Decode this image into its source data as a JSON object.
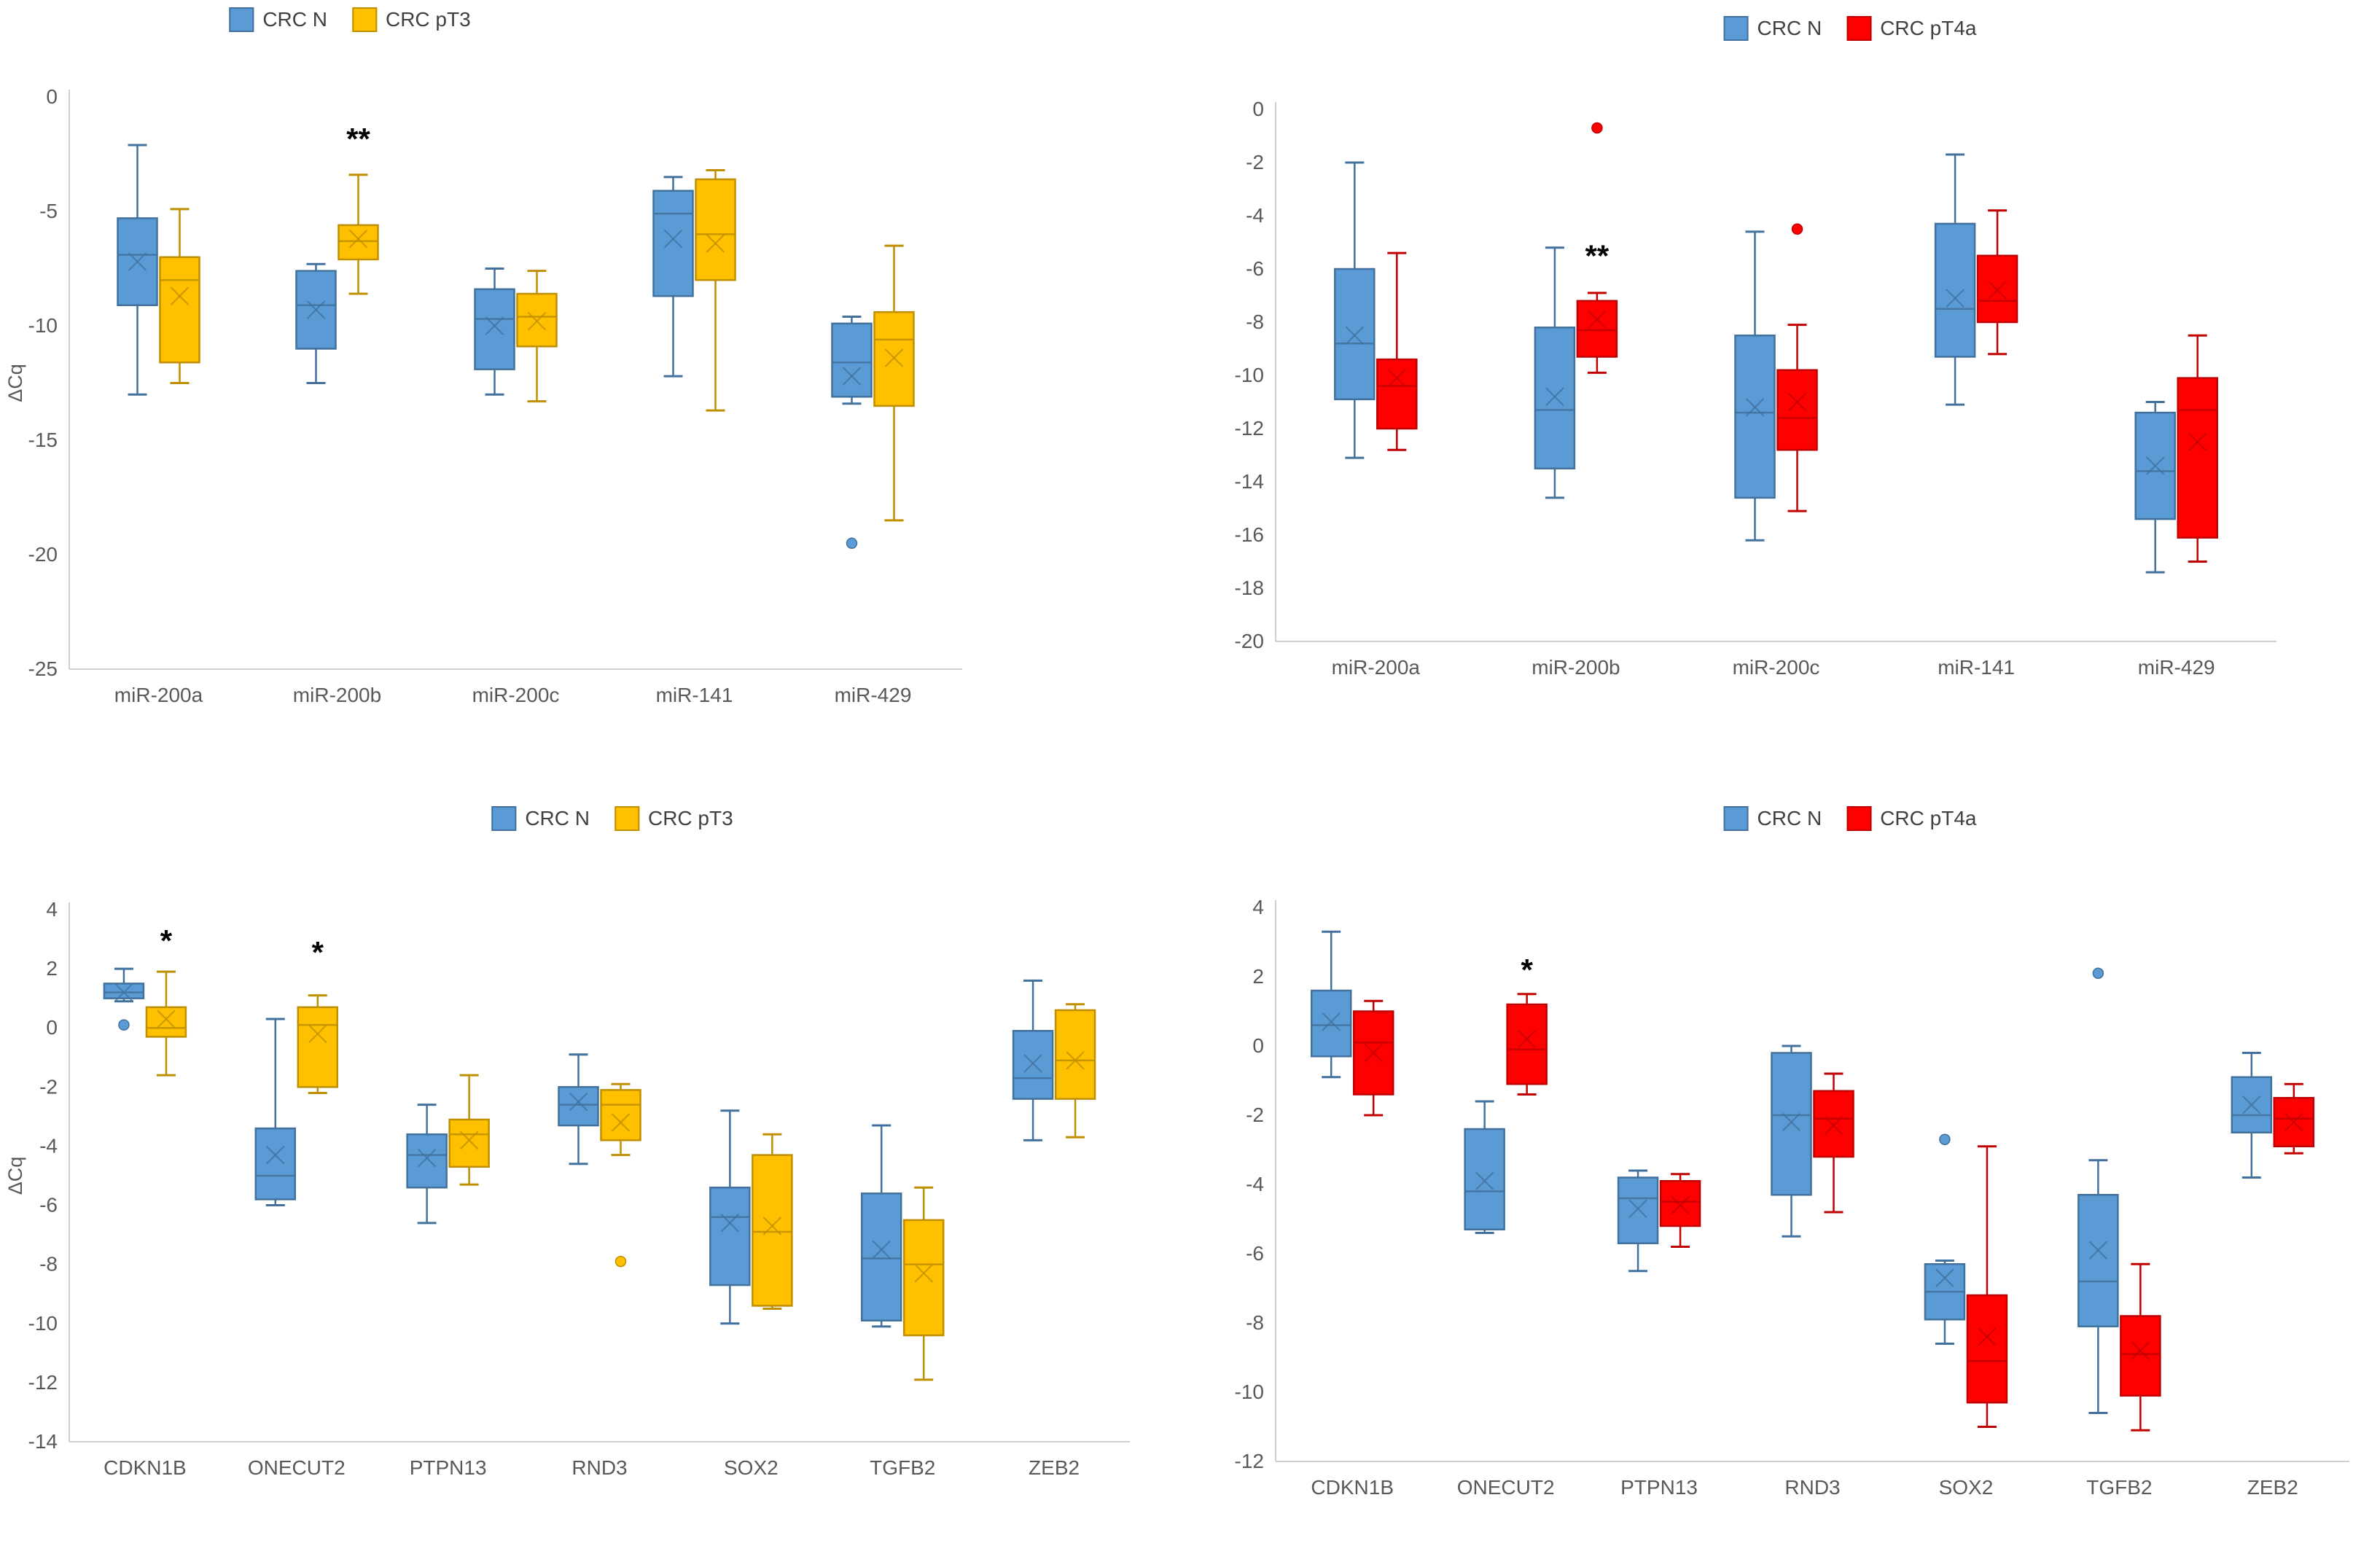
{
  "figure": {
    "description": "Four box-and-whisker charts comparing ΔCq expression in CRC normal vs tumor tissue",
    "y_axis_title": "ΔCq",
    "colors": {
      "crc_n_fill": "#5B9BD5",
      "crc_n_border": "#41719C",
      "crc_pt3_fill": "#FFC000",
      "crc_pt3_border": "#BF8F00",
      "crc_pt4a_fill": "#FF0000",
      "crc_pt4a_border": "#C00000",
      "axis_line": "#D0CECE",
      "tick_text": "#595959"
    }
  },
  "chart_data": [
    {
      "type": "box",
      "position": "top-left",
      "legend": [
        {
          "label": "CRC N",
          "color": "#5B9BD5",
          "border": "#41719C"
        },
        {
          "label": "CRC pT3",
          "color": "#FFC000",
          "border": "#BF8F00"
        }
      ],
      "ylabel": "ΔCq",
      "ylim": [
        -25,
        0
      ],
      "yticks": [
        0,
        -5,
        -10,
        -15,
        -20,
        -25
      ],
      "categories": [
        "miR-200a",
        "miR-200b",
        "miR-200c",
        "miR-141",
        "miR-429"
      ],
      "series": [
        {
          "name": "CRC N",
          "color": "#5B9BD5",
          "border": "#41719C",
          "boxes": [
            {
              "whisker_low": -13.0,
              "q1": -9.1,
              "median": -6.9,
              "mean": -7.2,
              "q3": -5.3,
              "whisker_high": -2.1,
              "outliers": [],
              "sig": null,
              "sig_y": null
            },
            {
              "whisker_low": -12.5,
              "q1": -11.0,
              "median": -9.1,
              "mean": -9.3,
              "q3": -7.6,
              "whisker_high": -7.3,
              "outliers": [],
              "sig": null,
              "sig_y": null
            },
            {
              "whisker_low": -13.0,
              "q1": -11.9,
              "median": -9.7,
              "mean": -10.0,
              "q3": -8.4,
              "whisker_high": -7.5,
              "outliers": [],
              "sig": null,
              "sig_y": null
            },
            {
              "whisker_low": -12.2,
              "q1": -8.7,
              "median": -5.1,
              "mean": -6.2,
              "q3": -4.1,
              "whisker_high": -3.5,
              "outliers": [],
              "sig": null,
              "sig_y": null
            },
            {
              "whisker_low": -13.4,
              "q1": -13.1,
              "median": -11.6,
              "mean": -12.2,
              "q3": -9.9,
              "whisker_high": -9.6,
              "outliers": [
                -19.5
              ],
              "sig": null,
              "sig_y": null
            }
          ]
        },
        {
          "name": "CRC pT3",
          "color": "#FFC000",
          "border": "#BF8F00",
          "boxes": [
            {
              "whisker_low": -12.5,
              "q1": -11.6,
              "median": -8.0,
              "mean": -8.7,
              "q3": -7.0,
              "whisker_high": -4.9,
              "outliers": [],
              "sig": null,
              "sig_y": null
            },
            {
              "whisker_low": -8.6,
              "q1": -7.1,
              "median": -6.3,
              "mean": -6.2,
              "q3": -5.6,
              "whisker_high": -3.4,
              "outliers": [],
              "sig": "**",
              "sig_y": -2.3
            },
            {
              "whisker_low": -13.3,
              "q1": -10.9,
              "median": -9.6,
              "mean": -9.8,
              "q3": -8.6,
              "whisker_high": -7.6,
              "outliers": [],
              "sig": null,
              "sig_y": null
            },
            {
              "whisker_low": -13.7,
              "q1": -8.0,
              "median": -6.0,
              "mean": -6.4,
              "q3": -3.6,
              "whisker_high": -3.2,
              "outliers": [],
              "sig": null,
              "sig_y": null
            },
            {
              "whisker_low": -18.5,
              "q1": -13.5,
              "median": -10.6,
              "mean": -11.4,
              "q3": -9.4,
              "whisker_high": -6.5,
              "outliers": [],
              "sig": null,
              "sig_y": null
            }
          ]
        }
      ]
    },
    {
      "type": "box",
      "position": "top-right",
      "legend": [
        {
          "label": "CRC N",
          "color": "#5B9BD5",
          "border": "#41719C"
        },
        {
          "label": "CRC pT4a",
          "color": "#FF0000",
          "border": "#C00000"
        }
      ],
      "ylabel": "",
      "ylim": [
        -20,
        0
      ],
      "yticks": [
        0,
        -2,
        -4,
        -6,
        -8,
        -10,
        -12,
        -14,
        -16,
        -18,
        -20
      ],
      "categories": [
        "miR-200a",
        "miR-200b",
        "miR-200c",
        "miR-141",
        "miR-429"
      ],
      "series": [
        {
          "name": "CRC N",
          "color": "#5B9BD5",
          "border": "#41719C",
          "boxes": [
            {
              "whisker_low": -13.1,
              "q1": -10.9,
              "median": -8.8,
              "mean": -8.5,
              "q3": -6.0,
              "whisker_high": -2.0,
              "outliers": [],
              "sig": null,
              "sig_y": null
            },
            {
              "whisker_low": -14.6,
              "q1": -13.5,
              "median": -11.3,
              "mean": -10.8,
              "q3": -8.2,
              "whisker_high": -5.2,
              "outliers": [],
              "sig": null,
              "sig_y": null
            },
            {
              "whisker_low": -16.2,
              "q1": -14.6,
              "median": -11.4,
              "mean": -11.2,
              "q3": -8.5,
              "whisker_high": -4.6,
              "outliers": [],
              "sig": null,
              "sig_y": null
            },
            {
              "whisker_low": -11.1,
              "q1": -9.3,
              "median": -7.5,
              "mean": -7.1,
              "q3": -4.3,
              "whisker_high": -1.7,
              "outliers": [],
              "sig": null,
              "sig_y": null
            },
            {
              "whisker_low": -17.4,
              "q1": -15.4,
              "median": -13.6,
              "mean": -13.4,
              "q3": -11.4,
              "whisker_high": -11.0,
              "outliers": [],
              "sig": null,
              "sig_y": null
            }
          ]
        },
        {
          "name": "CRC pT4a",
          "color": "#FF0000",
          "border": "#C00000",
          "boxes": [
            {
              "whisker_low": -12.8,
              "q1": -12.0,
              "median": -10.4,
              "mean": -10.1,
              "q3": -9.4,
              "whisker_high": -5.4,
              "outliers": [],
              "sig": null,
              "sig_y": null
            },
            {
              "whisker_low": -9.9,
              "q1": -9.3,
              "median": -8.3,
              "mean": -7.9,
              "q3": -7.2,
              "whisker_high": -6.9,
              "outliers": [
                -0.7
              ],
              "sig": "**",
              "sig_y": -5.9
            },
            {
              "whisker_low": -15.1,
              "q1": -12.8,
              "median": -11.6,
              "mean": -11.0,
              "q3": -9.8,
              "whisker_high": -8.1,
              "outliers": [
                -4.5
              ],
              "sig": null,
              "sig_y": null
            },
            {
              "whisker_low": -9.2,
              "q1": -8.0,
              "median": -7.2,
              "mean": -6.8,
              "q3": -5.5,
              "whisker_high": -3.8,
              "outliers": [],
              "sig": null,
              "sig_y": null
            },
            {
              "whisker_low": -17.0,
              "q1": -16.1,
              "median": -11.3,
              "mean": -12.5,
              "q3": -10.1,
              "whisker_high": -8.5,
              "outliers": [],
              "sig": null,
              "sig_y": null
            }
          ]
        }
      ]
    },
    {
      "type": "box",
      "position": "bottom-left",
      "legend": [
        {
          "label": "CRC N",
          "color": "#5B9BD5",
          "border": "#41719C"
        },
        {
          "label": "CRC pT3",
          "color": "#FFC000",
          "border": "#BF8F00"
        }
      ],
      "ylabel": "ΔCq",
      "ylim": [
        -14,
        4
      ],
      "yticks": [
        4,
        2,
        0,
        -2,
        -4,
        -6,
        -8,
        -10,
        -12,
        -14
      ],
      "categories": [
        "CDKN1B",
        "ONECUT2",
        "PTPN13",
        "RND3",
        "SOX2",
        "TGFB2",
        "ZEB2"
      ],
      "series": [
        {
          "name": "CRC N",
          "color": "#5B9BD5",
          "border": "#41719C",
          "boxes": [
            {
              "whisker_low": 0.9,
              "q1": 1.0,
              "median": 1.2,
              "mean": 1.2,
              "q3": 1.5,
              "whisker_high": 2.0,
              "outliers": [
                0.1
              ],
              "sig": null,
              "sig_y": null
            },
            {
              "whisker_low": -6.0,
              "q1": -5.8,
              "median": -5.0,
              "mean": -4.3,
              "q3": -3.4,
              "whisker_high": 0.3,
              "outliers": [],
              "sig": null,
              "sig_y": null
            },
            {
              "whisker_low": -6.6,
              "q1": -5.4,
              "median": -4.3,
              "mean": -4.4,
              "q3": -3.6,
              "whisker_high": -2.6,
              "outliers": [],
              "sig": null,
              "sig_y": null
            },
            {
              "whisker_low": -4.6,
              "q1": -3.3,
              "median": -2.6,
              "mean": -2.5,
              "q3": -2.0,
              "whisker_high": -0.9,
              "outliers": [],
              "sig": null,
              "sig_y": null
            },
            {
              "whisker_low": -10.0,
              "q1": -8.7,
              "median": -6.4,
              "mean": -6.6,
              "q3": -5.4,
              "whisker_high": -2.8,
              "outliers": [],
              "sig": null,
              "sig_y": null
            },
            {
              "whisker_low": -10.1,
              "q1": -9.9,
              "median": -7.8,
              "mean": -7.5,
              "q3": -5.6,
              "whisker_high": -3.3,
              "outliers": [],
              "sig": null,
              "sig_y": null
            },
            {
              "whisker_low": -3.8,
              "q1": -2.4,
              "median": -1.7,
              "mean": -1.2,
              "q3": -0.1,
              "whisker_high": 1.6,
              "outliers": [],
              "sig": null,
              "sig_y": null
            }
          ]
        },
        {
          "name": "CRC pT3",
          "color": "#FFC000",
          "border": "#BF8F00",
          "boxes": [
            {
              "whisker_low": -1.6,
              "q1": -0.3,
              "median": 0.0,
              "mean": 0.3,
              "q3": 0.7,
              "whisker_high": 1.9,
              "outliers": [],
              "sig": "*",
              "sig_y": 2.6
            },
            {
              "whisker_low": -2.2,
              "q1": -2.0,
              "median": 0.1,
              "mean": -0.2,
              "q3": 0.7,
              "whisker_high": 1.1,
              "outliers": [],
              "sig": "*",
              "sig_y": 2.2
            },
            {
              "whisker_low": -5.3,
              "q1": -4.7,
              "median": -3.6,
              "mean": -3.8,
              "q3": -3.1,
              "whisker_high": -1.6,
              "outliers": [],
              "sig": null,
              "sig_y": null
            },
            {
              "whisker_low": -4.3,
              "q1": -3.8,
              "median": -2.6,
              "mean": -3.2,
              "q3": -2.1,
              "whisker_high": -1.9,
              "outliers": [
                -7.9
              ],
              "sig": null,
              "sig_y": null
            },
            {
              "whisker_low": -9.5,
              "q1": -9.4,
              "median": -6.9,
              "mean": -6.7,
              "q3": -4.3,
              "whisker_high": -3.6,
              "outliers": [],
              "sig": null,
              "sig_y": null
            },
            {
              "whisker_low": -11.9,
              "q1": -10.4,
              "median": -8.0,
              "mean": -8.3,
              "q3": -6.5,
              "whisker_high": -5.4,
              "outliers": [],
              "sig": null,
              "sig_y": null
            },
            {
              "whisker_low": -3.7,
              "q1": -2.4,
              "median": -1.1,
              "mean": -1.1,
              "q3": 0.6,
              "whisker_high": 0.8,
              "outliers": [],
              "sig": null,
              "sig_y": null
            }
          ]
        }
      ]
    },
    {
      "type": "box",
      "position": "bottom-right",
      "legend": [
        {
          "label": "CRC N",
          "color": "#5B9BD5",
          "border": "#41719C"
        },
        {
          "label": "CRC pT4a",
          "color": "#FF0000",
          "border": "#C00000"
        }
      ],
      "ylabel": "",
      "ylim": [
        -12,
        4
      ],
      "yticks": [
        4,
        2,
        0,
        -2,
        -4,
        -6,
        -8,
        -10,
        -12
      ],
      "categories": [
        "CDKN1B",
        "ONECUT2",
        "PTPN13",
        "RND3",
        "SOX2",
        "TGFB2",
        "ZEB2"
      ],
      "series": [
        {
          "name": "CRC N",
          "color": "#5B9BD5",
          "border": "#41719C",
          "boxes": [
            {
              "whisker_low": -0.9,
              "q1": -0.3,
              "median": 0.6,
              "mean": 0.7,
              "q3": 1.6,
              "whisker_high": 3.3,
              "outliers": [],
              "sig": null,
              "sig_y": null
            },
            {
              "whisker_low": -5.4,
              "q1": -5.3,
              "median": -4.2,
              "mean": -3.9,
              "q3": -2.4,
              "whisker_high": -1.6,
              "outliers": [],
              "sig": null,
              "sig_y": null
            },
            {
              "whisker_low": -6.5,
              "q1": -5.7,
              "median": -4.4,
              "mean": -4.7,
              "q3": -3.8,
              "whisker_high": -3.6,
              "outliers": [],
              "sig": null,
              "sig_y": null
            },
            {
              "whisker_low": -5.5,
              "q1": -4.3,
              "median": -2.0,
              "mean": -2.2,
              "q3": -0.2,
              "whisker_high": 0.0,
              "outliers": [],
              "sig": null,
              "sig_y": null
            },
            {
              "whisker_low": -8.6,
              "q1": -7.9,
              "median": -7.1,
              "mean": -6.7,
              "q3": -6.3,
              "whisker_high": -6.2,
              "outliers": [
                -2.7
              ],
              "sig": null,
              "sig_y": null
            },
            {
              "whisker_low": -10.6,
              "q1": -8.1,
              "median": -6.8,
              "mean": -5.9,
              "q3": -4.3,
              "whisker_high": -3.3,
              "outliers": [
                2.1
              ],
              "sig": null,
              "sig_y": null
            },
            {
              "whisker_low": -3.8,
              "q1": -2.5,
              "median": -2.0,
              "mean": -1.7,
              "q3": -0.9,
              "whisker_high": -0.2,
              "outliers": [],
              "sig": null,
              "sig_y": null
            }
          ]
        },
        {
          "name": "CRC pT4a",
          "color": "#FF0000",
          "border": "#C00000",
          "boxes": [
            {
              "whisker_low": -2.0,
              "q1": -1.4,
              "median": 0.1,
              "mean": -0.2,
              "q3": 1.0,
              "whisker_high": 1.3,
              "outliers": [],
              "sig": null,
              "sig_y": null
            },
            {
              "whisker_low": -1.4,
              "q1": -1.1,
              "median": -0.1,
              "mean": 0.2,
              "q3": 1.2,
              "whisker_high": 1.5,
              "outliers": [],
              "sig": "*",
              "sig_y": 1.9
            },
            {
              "whisker_low": -5.8,
              "q1": -5.2,
              "median": -4.5,
              "mean": -4.6,
              "q3": -3.9,
              "whisker_high": -3.7,
              "outliers": [],
              "sig": null,
              "sig_y": null
            },
            {
              "whisker_low": -4.8,
              "q1": -3.2,
              "median": -2.1,
              "mean": -2.3,
              "q3": -1.3,
              "whisker_high": -0.8,
              "outliers": [],
              "sig": null,
              "sig_y": null
            },
            {
              "whisker_low": -11.0,
              "q1": -10.3,
              "median": -9.1,
              "mean": -8.4,
              "q3": -7.2,
              "whisker_high": -2.9,
              "outliers": [],
              "sig": null,
              "sig_y": null
            },
            {
              "whisker_low": -11.1,
              "q1": -10.1,
              "median": -8.9,
              "mean": -8.8,
              "q3": -7.8,
              "whisker_high": -6.3,
              "outliers": [],
              "sig": null,
              "sig_y": null
            },
            {
              "whisker_low": -3.1,
              "q1": -2.9,
              "median": -2.1,
              "mean": -2.2,
              "q3": -1.5,
              "whisker_high": -1.1,
              "outliers": [],
              "sig": null,
              "sig_y": null
            }
          ]
        }
      ]
    }
  ]
}
